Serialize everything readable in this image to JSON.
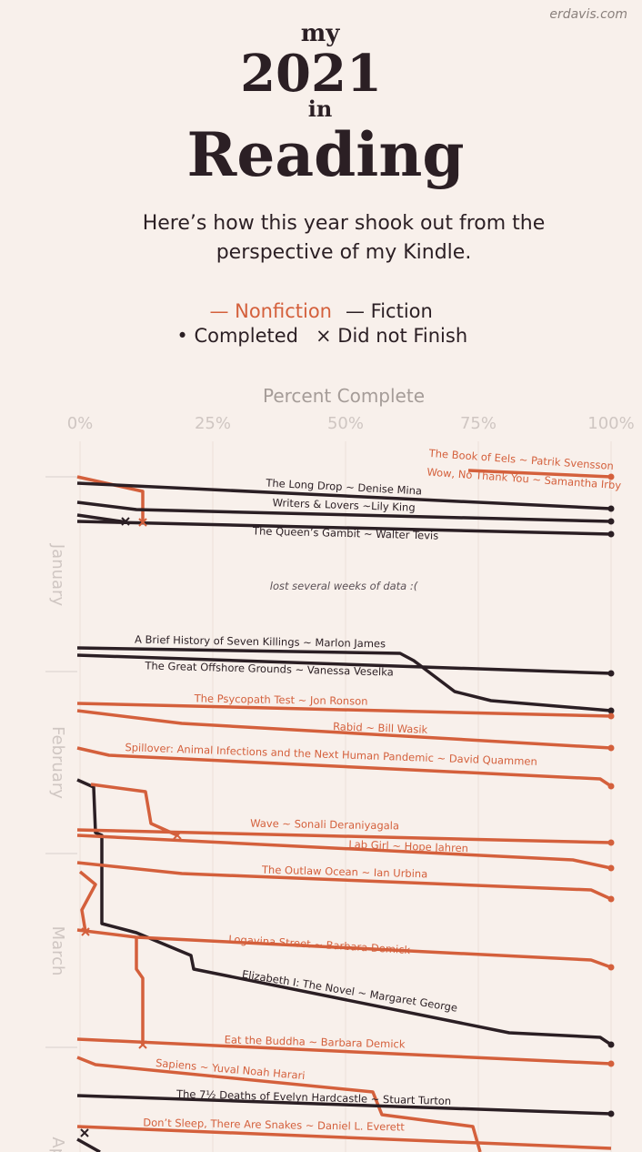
{
  "header": {
    "site": "erdavis.com",
    "title": [
      "my",
      "2021",
      "in",
      "Reading"
    ],
    "subtitle": [
      "Here’s how this year shook out from the",
      "perspective of my Kindle."
    ]
  },
  "legend": [
    "— Nonfiction",
    "— Fiction",
    "• Completed",
    "× Did not Finish"
  ],
  "axis": {
    "title": "Percent Complete",
    "xlim": [
      0,
      100
    ],
    "xticks": [
      {
        "value": 0,
        "label": "0%"
      },
      {
        "value": 25,
        "label": "25%"
      },
      {
        "value": 50,
        "label": "50%"
      },
      {
        "value": 75,
        "label": "75%"
      },
      {
        "value": 100,
        "label": "100%"
      }
    ]
  },
  "months": [
    "January",
    "February",
    "March",
    "April"
  ],
  "annotation": "lost several weeks of data :(",
  "books": [
    "The Book of Eels ~ Patrik Svensson",
    "Wow, No Thank You ~ Samantha Irby",
    "The Long Drop ~ Denise Mina",
    "Writers & Lovers ~Lily King",
    "The Queen’s Gambit ~ Walter Tevis",
    "A Brief History of Seven Killings ~ Marlon James",
    "The Great Offshore Grounds ~ Vanessa Veselka",
    "The Psycopath Test ~ Jon Ronson",
    "Rabid ~ Bill Wasik",
    "Spillover: Animal Infections and the Next Human Pandemic ~ David Quammen",
    "Wave ~ Sonali Deraniyagala",
    "Lab Girl ~ Hope Jahren",
    "The Outlaw Ocean ~ Ian Urbina",
    "Logavina Street ~ Barbara Demick",
    "Elizabeth I: The Novel ~ Margaret George",
    "Eat the Buddha ~ Barbara Demick",
    "Sapiens ~ Yuval Noah Harari",
    "The 7½ Deaths of Evelyn Hardcastle ~ Stuart Turton",
    "Don’t Sleep, There Are Snakes ~ Daniel L. Everett"
  ]
}
